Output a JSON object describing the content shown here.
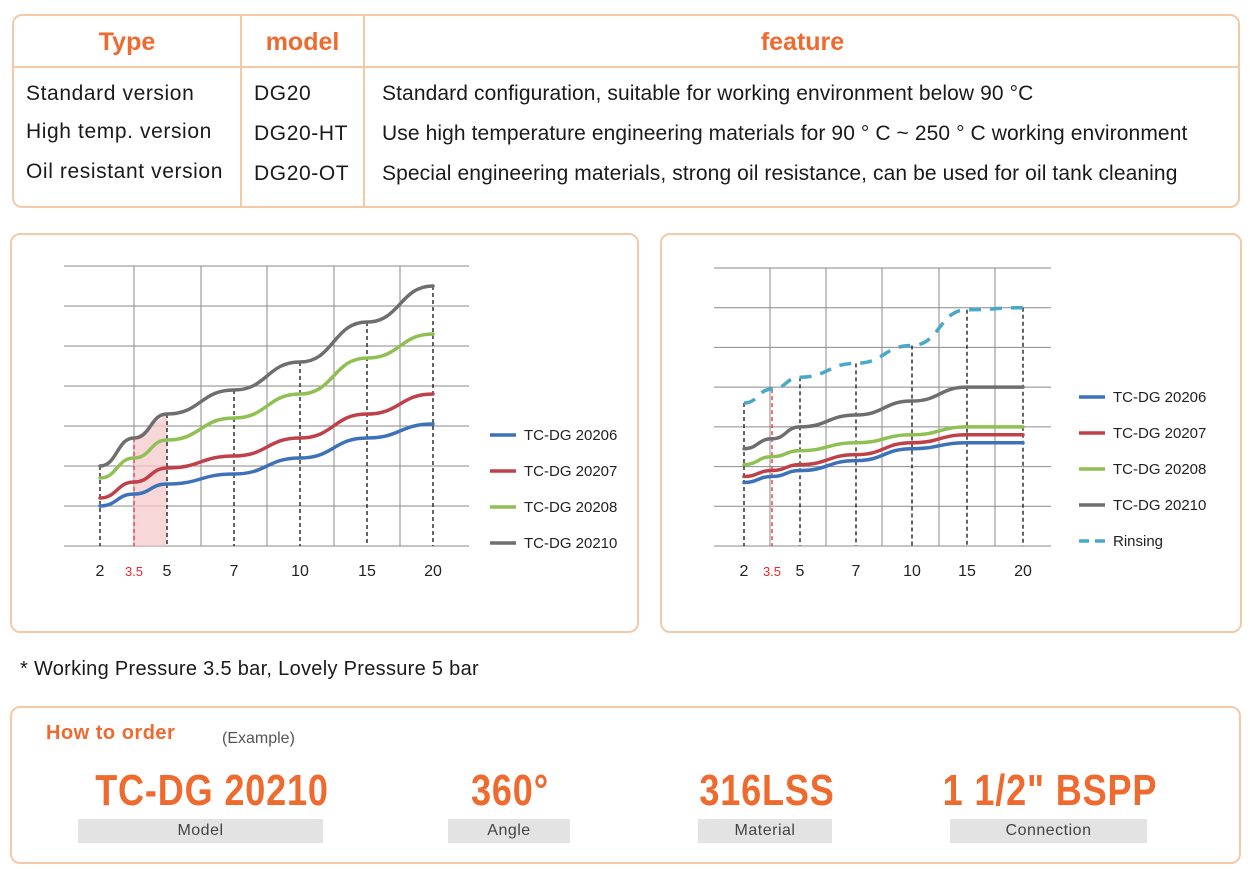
{
  "table": {
    "headers": {
      "type": "Type",
      "model": "model",
      "feature": "feature"
    },
    "rows": [
      {
        "type": "Standard version",
        "model": "DG20",
        "feature": "Standard configuration, suitable for working environment below 90 °C"
      },
      {
        "type": "High temp. version",
        "model": "DG20-HT",
        "feature": "Use high temperature engineering materials for 90 ° C ~ 250 ° C working environment"
      },
      {
        "type": "Oil resistant version",
        "model": "DG20-OT",
        "feature": "Special engineering materials, strong oil resistance, can be used for oil tank cleaning"
      }
    ]
  },
  "colors": {
    "accent": "#ee6a2e",
    "border": "#f4c9a8",
    "highlight_red": "#e8262e",
    "shade": "#f6c9cc"
  },
  "chart_data": [
    {
      "type": "line",
      "x": [
        "2",
        "3.5",
        "5",
        "7",
        "10",
        "15",
        "20"
      ],
      "x_highlight": "3.5",
      "ylim": [
        0,
        7
      ],
      "grid": true,
      "legend": "right",
      "series": [
        {
          "name": "TC-DG 20206",
          "color": "#3d72b8",
          "values": [
            1.0,
            1.3,
            1.55,
            1.8,
            2.2,
            2.7,
            3.05
          ]
        },
        {
          "name": "TC-DG 20207",
          "color": "#c0404a",
          "values": [
            1.2,
            1.6,
            1.95,
            2.25,
            2.7,
            3.3,
            3.8
          ]
        },
        {
          "name": "TC-DG 20208",
          "color": "#90c054",
          "values": [
            1.7,
            2.2,
            2.65,
            3.2,
            3.8,
            4.7,
            5.3
          ]
        },
        {
          "name": "TC-DG 20210",
          "color": "#6e6e6e",
          "values": [
            2.0,
            2.7,
            3.3,
            3.9,
            4.6,
            5.6,
            6.5
          ]
        }
      ]
    },
    {
      "type": "line",
      "x": [
        "2",
        "3.5",
        "5",
        "7",
        "10",
        "15",
        "20"
      ],
      "x_highlight": "3.5",
      "ylim": [
        0,
        7
      ],
      "grid": true,
      "legend": "right",
      "series": [
        {
          "name": "TC-DG 20206",
          "color": "#3d72b8",
          "values": [
            1.6,
            1.75,
            1.9,
            2.15,
            2.45,
            2.6,
            2.6
          ]
        },
        {
          "name": "TC-DG 20207",
          "color": "#c0404a",
          "values": [
            1.75,
            1.9,
            2.05,
            2.3,
            2.6,
            2.8,
            2.8
          ]
        },
        {
          "name": "TC-DG 20208",
          "color": "#90c054",
          "values": [
            2.05,
            2.25,
            2.4,
            2.6,
            2.8,
            3.0,
            3.0
          ]
        },
        {
          "name": "TC-DG 20210",
          "color": "#6e6e6e",
          "values": [
            2.45,
            2.7,
            3.0,
            3.3,
            3.65,
            4.0,
            4.0
          ]
        },
        {
          "name": "Rinsing",
          "color": "#47a8c9",
          "dashed": true,
          "values": [
            3.6,
            3.95,
            4.25,
            4.6,
            5.05,
            5.95,
            6.0
          ]
        }
      ]
    }
  ],
  "note": "* Working Pressure 3.5 bar,  Lovely Pressure 5 bar",
  "order": {
    "title": "How to order",
    "subtitle": "(Example)",
    "items": [
      {
        "value": "TC-DG 20210",
        "label": "Model"
      },
      {
        "value": "360°",
        "label": "Angle"
      },
      {
        "value": "316LSS",
        "label": "Material"
      },
      {
        "value": "1 1/2\" BSPP",
        "label": "Connection"
      }
    ]
  }
}
